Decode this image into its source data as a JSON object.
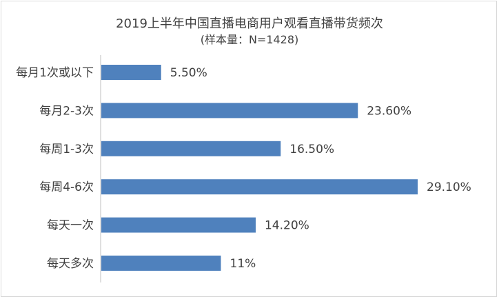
{
  "chart_data": {
    "type": "bar",
    "orientation": "horizontal",
    "title": "2019上半年中国直播电商用户观看直播带货频次",
    "subtitle": "(样本量：N=1428)",
    "categories": [
      "每月1次或以下",
      "每月2-3次",
      "每周1-3次",
      "每周4-6次",
      "每天一次",
      "每天多次"
    ],
    "values": [
      5.5,
      23.6,
      16.5,
      29.1,
      14.2,
      11
    ],
    "value_labels": [
      "5.50%",
      "23.60%",
      "16.50%",
      "29.10%",
      "14.20%",
      "11%"
    ],
    "xlim": [
      0,
      29.1
    ],
    "bar_color": "#4f81bd",
    "grid": false,
    "legend": "none"
  }
}
